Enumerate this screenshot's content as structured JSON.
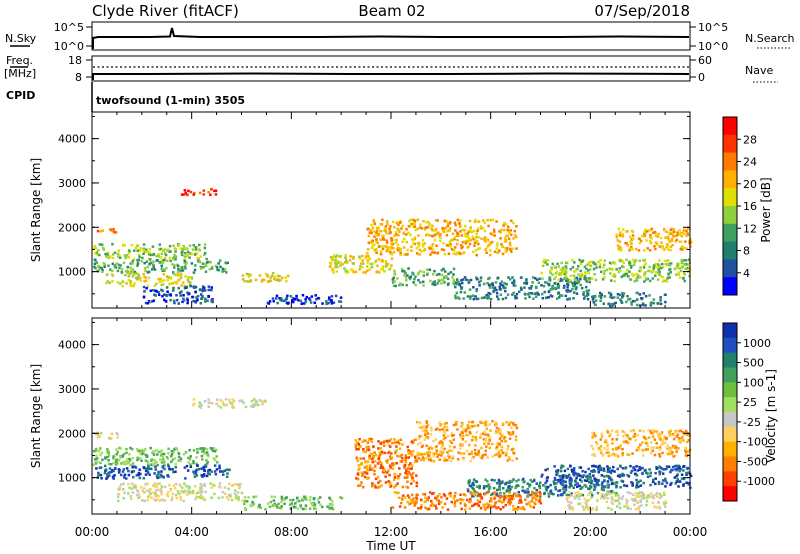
{
  "header": {
    "station": "Clyde River (fitACF)",
    "beam": "Beam 02",
    "date": "07/Sep/2018"
  },
  "small_panels": {
    "nsky_label": "N.Sky",
    "nsky_ticks": [
      "10^5",
      "10^0"
    ],
    "nsearch_label": "N.Search",
    "nsearch_ticks": [
      "10^5",
      "10^0"
    ],
    "freq_label": "Freq.",
    "freq_unit": "[MHz]",
    "freq_ticks": [
      "18",
      "8"
    ],
    "nave_label": "Nave",
    "nave_ticks": [
      "60",
      "0"
    ],
    "cpid_label": "CPID",
    "cpid_text": "twofsound (1-min) 3505"
  },
  "chart_data": [
    {
      "type": "heatmap",
      "name": "power",
      "ylabel": "Slant Range [km]",
      "y_ticks": [
        1000,
        2000,
        3000,
        4000
      ],
      "ylim": [
        180,
        4600
      ],
      "x_ticks": [
        "00:00",
        "04:00",
        "08:00",
        "12:00",
        "16:00",
        "20:00",
        "00:00"
      ],
      "xlim_hours": [
        0,
        24
      ],
      "colorbar": {
        "label": "Power [dB]",
        "ticks": [
          "28",
          "24",
          "20",
          "16",
          "12",
          "8",
          "4"
        ],
        "colors": [
          "#ff0000",
          "#ff3300",
          "#ff7a00",
          "#ffb000",
          "#e0e000",
          "#90d040",
          "#40a060",
          "#208070",
          "#2050a0",
          "#0000ff"
        ]
      },
      "regions": [
        {
          "t0": 0.0,
          "t1": 1.0,
          "r0": 1900,
          "r1": 2000,
          "level": 2
        },
        {
          "t0": 0.0,
          "t1": 4.6,
          "r0": 1300,
          "r1": 1650,
          "level": 5
        },
        {
          "t0": 0.0,
          "t1": 5.5,
          "r0": 1000,
          "r1": 1300,
          "level": 6
        },
        {
          "t0": 0.5,
          "t1": 4.0,
          "r0": 700,
          "r1": 1000,
          "level": 4
        },
        {
          "t0": 2.0,
          "t1": 4.8,
          "r0": 300,
          "r1": 700,
          "level": 8
        },
        {
          "t0": 3.5,
          "t1": 5.0,
          "r0": 2750,
          "r1": 2900,
          "level": 1
        },
        {
          "t0": 6.0,
          "t1": 8.0,
          "r0": 800,
          "r1": 1000,
          "level": 4
        },
        {
          "t0": 7.0,
          "t1": 10.0,
          "r0": 300,
          "r1": 500,
          "level": 8
        },
        {
          "t0": 9.5,
          "t1": 12.0,
          "r0": 1000,
          "r1": 1400,
          "level": 4
        },
        {
          "t0": 11.0,
          "t1": 17.0,
          "r0": 1400,
          "r1": 2200,
          "level": 3
        },
        {
          "t0": 12.0,
          "t1": 14.5,
          "r0": 700,
          "r1": 1100,
          "level": 6
        },
        {
          "t0": 14.5,
          "t1": 20.0,
          "r0": 400,
          "r1": 900,
          "level": 7
        },
        {
          "t0": 18.0,
          "t1": 24.0,
          "r0": 800,
          "r1": 1300,
          "level": 5
        },
        {
          "t0": 21.0,
          "t1": 24.0,
          "r0": 1500,
          "r1": 2000,
          "level": 3
        },
        {
          "t0": 20.0,
          "t1": 23.0,
          "r0": 250,
          "r1": 550,
          "level": 7
        }
      ]
    },
    {
      "type": "heatmap",
      "name": "velocity",
      "ylabel": "Slant Range [km]",
      "y_ticks": [
        1000,
        2000,
        3000,
        4000
      ],
      "ylim": [
        180,
        4600
      ],
      "x_ticks": [
        "00:00",
        "04:00",
        "08:00",
        "12:00",
        "16:00",
        "20:00",
        "00:00"
      ],
      "xlabel": "Time UT",
      "xlim_hours": [
        0,
        24
      ],
      "colorbar": {
        "label": "Velocity [m s-1]",
        "ticks": [
          "1000",
          "500",
          "100",
          "25",
          "-25",
          "-100",
          "-500",
          "-1000"
        ],
        "colors": [
          "#1030b0",
          "#2050c0",
          "#20806a",
          "#40a060",
          "#70c040",
          "#a0e060",
          "#c8c8c8",
          "#ffd060",
          "#ffb000",
          "#ff8000",
          "#ff4000",
          "#ff0000"
        ]
      },
      "regions": [
        {
          "t0": 0.0,
          "t1": 1.0,
          "r0": 1900,
          "r1": 2050,
          "level": 6
        },
        {
          "t0": 0.0,
          "t1": 5.0,
          "r0": 1300,
          "r1": 1700,
          "level": 4
        },
        {
          "t0": 0.0,
          "t1": 5.5,
          "r0": 1000,
          "r1": 1300,
          "level": 1
        },
        {
          "t0": 1.0,
          "t1": 6.0,
          "r0": 500,
          "r1": 900,
          "level": 6
        },
        {
          "t0": 4.0,
          "t1": 7.0,
          "r0": 2600,
          "r1": 2800,
          "level": 6
        },
        {
          "t0": 6.0,
          "t1": 10.0,
          "r0": 300,
          "r1": 600,
          "level": 4
        },
        {
          "t0": 10.5,
          "t1": 13.0,
          "r0": 800,
          "r1": 1900,
          "level": 9
        },
        {
          "t0": 13.0,
          "t1": 17.0,
          "r0": 1400,
          "r1": 2300,
          "level": 8
        },
        {
          "t0": 15.0,
          "t1": 21.0,
          "r0": 600,
          "r1": 1000,
          "level": 2
        },
        {
          "t0": 18.0,
          "t1": 24.0,
          "r0": 800,
          "r1": 1300,
          "level": 1
        },
        {
          "t0": 20.0,
          "t1": 24.0,
          "r0": 1500,
          "r1": 2100,
          "level": 8
        },
        {
          "t0": 12.0,
          "t1": 18.0,
          "r0": 300,
          "r1": 700,
          "level": 9
        },
        {
          "t0": 19.0,
          "t1": 23.0,
          "r0": 300,
          "r1": 700,
          "level": 6
        }
      ]
    }
  ]
}
